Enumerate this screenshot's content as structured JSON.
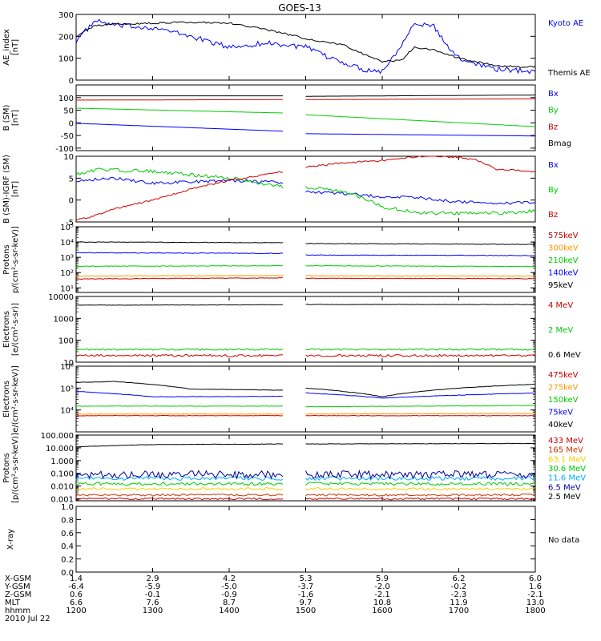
{
  "title": "GOES-13",
  "x_axis": {
    "tick_positions_hhmm": [
      1200,
      1300,
      1400,
      1500,
      1600,
      1700,
      1800
    ],
    "rows": [
      {
        "label": "X-GSM",
        "values": [
          "1.4",
          "2.9",
          "4.2",
          "5.3",
          "5.9",
          "6.2",
          "6.0"
        ]
      },
      {
        "label": "Y-GSM",
        "values": [
          "-6.4",
          "-5.9",
          "-5.0",
          "-3.7",
          "-2.0",
          "-0.2",
          "1.6"
        ]
      },
      {
        "label": "Z-GSM",
        "values": [
          "0.6",
          "-0.1",
          "-0.9",
          "-1.6",
          "-2.1",
          "-2.3",
          "-2.1"
        ]
      },
      {
        "label": "MLT",
        "values": [
          "6.6",
          "7.6",
          "8.7",
          "9.7",
          "10.8",
          "11.9",
          "13.0"
        ]
      },
      {
        "label": "hhmm",
        "values": [
          "1200",
          "1300",
          "1400",
          "1500",
          "1600",
          "1700",
          "1800"
        ]
      }
    ],
    "date_label": "2010 Jul 22"
  },
  "chart_data": [
    {
      "type": "line",
      "ylabel": [
        "AE_index",
        "[nT]"
      ],
      "ylim": [
        0,
        300
      ],
      "scale": "linear",
      "ticks": [
        0,
        100,
        200,
        300
      ],
      "tick_labels": [
        "0",
        "100",
        "200",
        "300"
      ],
      "gap": null,
      "series": [
        {
          "name": "Kyoto AE",
          "color": "#0000ff",
          "noise": 12,
          "x": [
            1200,
            1215,
            1230,
            1300,
            1330,
            1400,
            1430,
            1500,
            1515,
            1530,
            1545,
            1600,
            1615,
            1625,
            1630,
            1640,
            1650,
            1700,
            1730,
            1800
          ],
          "y": [
            180,
            270,
            250,
            240,
            200,
            150,
            170,
            150,
            110,
            80,
            50,
            40,
            160,
            270,
            250,
            250,
            160,
            100,
            50,
            40
          ]
        },
        {
          "name": "Themis AE",
          "color": "#000000",
          "noise": 4,
          "x": [
            1200,
            1215,
            1230,
            1300,
            1330,
            1400,
            1430,
            1500,
            1530,
            1545,
            1600,
            1615,
            1625,
            1640,
            1700,
            1730,
            1800
          ],
          "y": [
            200,
            250,
            255,
            260,
            265,
            260,
            230,
            190,
            160,
            120,
            85,
            90,
            150,
            140,
            100,
            65,
            60
          ]
        }
      ]
    },
    {
      "type": "line",
      "ylabel": [
        "B (SM)",
        "[nT]"
      ],
      "ylim": [
        -110,
        150
      ],
      "scale": "linear",
      "ticks": [
        -100,
        -50,
        0,
        50,
        100
      ],
      "tick_labels": [
        "-100",
        "-50",
        "0",
        "50",
        "100"
      ],
      "gap": [
        1442,
        1500
      ],
      "series": [
        {
          "name": "Bx",
          "color": "#0000ff",
          "noise": 0,
          "x": [
            1200,
            1442,
            1500,
            1800
          ],
          "y": [
            -2,
            -33,
            -43,
            -52
          ]
        },
        {
          "name": "By",
          "color": "#00cc00",
          "noise": 0,
          "x": [
            1200,
            1442,
            1500,
            1800
          ],
          "y": [
            58,
            39,
            32,
            -15
          ]
        },
        {
          "name": "Bz",
          "color": "#cc0000",
          "noise": 0,
          "x": [
            1200,
            1442,
            1500,
            1800
          ],
          "y": [
            90,
            92,
            92,
            95
          ]
        },
        {
          "name": "Bmag",
          "color": "#000000",
          "noise": 0,
          "x": [
            1200,
            1442,
            1500,
            1800
          ],
          "y": [
            107,
            107,
            105,
            110
          ]
        }
      ]
    },
    {
      "type": "line",
      "ylabel": [
        "B (SM)-IGRF (SM)",
        "[nT]"
      ],
      "ylim": [
        -5,
        10
      ],
      "scale": "linear",
      "ticks": [
        -5,
        0,
        5,
        10
      ],
      "tick_labels": [
        "-5",
        "0",
        "5",
        "10"
      ],
      "gap": [
        1442,
        1500
      ],
      "series": [
        {
          "name": "Bx",
          "color": "#0000ff",
          "noise": 0.35,
          "x": [
            1200,
            1230,
            1300,
            1400,
            1442,
            1500,
            1530,
            1600,
            1630,
            1700,
            1730,
            1800
          ],
          "y": [
            4.5,
            5.0,
            3.8,
            4.5,
            4.0,
            2.0,
            1.5,
            0.8,
            0.5,
            -0.4,
            -0.8,
            -0.5
          ]
        },
        {
          "name": "By",
          "color": "#00cc00",
          "noise": 0.4,
          "x": [
            1200,
            1220,
            1300,
            1400,
            1442,
            1500,
            1530,
            1545,
            1600,
            1630,
            1700,
            1730,
            1800
          ],
          "y": [
            6.0,
            7.0,
            6.5,
            5.0,
            3.0,
            3.0,
            2.0,
            0.5,
            -1.5,
            -3.0,
            -3.0,
            -3.0,
            -2.5
          ]
        },
        {
          "name": "Bz",
          "color": "#cc0000",
          "noise": 0.2,
          "x": [
            1200,
            1210,
            1230,
            1300,
            1330,
            1400,
            1442,
            1500,
            1530,
            1600,
            1630,
            1700,
            1715,
            1730,
            1800
          ],
          "y": [
            -4.5,
            -4.0,
            -2.0,
            0.0,
            2.5,
            4.5,
            6.5,
            7.5,
            8.5,
            9.0,
            10.0,
            9.8,
            9.0,
            7.0,
            6.5
          ]
        }
      ]
    },
    {
      "type": "line",
      "ylabel": [
        "Protons",
        "p/(cm²-s-sr-keV)]"
      ],
      "ylim": [
        5,
        100000
      ],
      "scale": "log",
      "ticks": [
        10,
        100,
        1000,
        10000,
        100000
      ],
      "tick_labels": [
        "10¹",
        "10²",
        "10³",
        "10⁴",
        "10⁵"
      ],
      "gap": [
        1442,
        1500
      ],
      "series": [
        {
          "name": "575keV",
          "color": "#cc0000",
          "noise": 0.02,
          "x": [
            1200,
            1442,
            1500,
            1800
          ],
          "y": [
            38,
            45,
            42,
            40
          ]
        },
        {
          "name": "300keV",
          "color": "#ff9900",
          "noise": 0.02,
          "x": [
            1200,
            1442,
            1500,
            1800
          ],
          "y": [
            60,
            65,
            62,
            60
          ]
        },
        {
          "name": "210keV",
          "color": "#00cc00",
          "noise": 0.02,
          "x": [
            1200,
            1442,
            1500,
            1800
          ],
          "y": [
            260,
            280,
            280,
            250
          ]
        },
        {
          "name": "140keV",
          "color": "#0000ff",
          "noise": 0.02,
          "x": [
            1200,
            1442,
            1500,
            1800
          ],
          "y": [
            2000,
            1800,
            1400,
            1300
          ]
        },
        {
          "name": "95keV",
          "color": "#000000",
          "noise": 0.02,
          "x": [
            1200,
            1442,
            1500,
            1800
          ],
          "y": [
            10000,
            9000,
            8000,
            7000
          ]
        }
      ]
    },
    {
      "type": "line",
      "ylabel": [
        "Electrons",
        "[e/(cm²-s-sr)]"
      ],
      "ylim": [
        10,
        10000
      ],
      "scale": "log",
      "ticks": [
        10,
        100,
        1000,
        10000
      ],
      "tick_labels": [
        "10",
        "100",
        "1000",
        "10000"
      ],
      "gap": [
        1442,
        1500
      ],
      "series": [
        {
          "name": "4 MeV",
          "color": "#cc0000",
          "noise": 0.05,
          "x": [
            1200,
            1442,
            1500,
            1800
          ],
          "y": [
            20,
            20,
            20,
            20
          ]
        },
        {
          "name": "2 MeV",
          "color": "#00cc00",
          "noise": 0.04,
          "x": [
            1200,
            1442,
            1500,
            1800
          ],
          "y": [
            38,
            38,
            38,
            38
          ]
        },
        {
          "name": "0.6 MeV",
          "color": "#000000",
          "noise": 0.01,
          "x": [
            1200,
            1442,
            1500,
            1800
          ],
          "y": [
            4000,
            4200,
            4300,
            4300
          ]
        }
      ]
    },
    {
      "type": "line",
      "ylabel": [
        "Electrons",
        "e/(cm²-s-sr-keV)]"
      ],
      "ylim": [
        1000,
        1000000
      ],
      "scale": "log",
      "ticks": [
        10000,
        100000,
        1000000
      ],
      "tick_labels": [
        "10⁴",
        "10⁵",
        "10⁶"
      ],
      "gap": [
        1442,
        1500
      ],
      "series": [
        {
          "name": "475keV",
          "color": "#cc0000",
          "noise": 0.01,
          "x": [
            1200,
            1442,
            1500,
            1800
          ],
          "y": [
            5500,
            5500,
            5500,
            5500
          ]
        },
        {
          "name": "275keV",
          "color": "#ff9900",
          "noise": 0.01,
          "x": [
            1200,
            1442,
            1500,
            1800
          ],
          "y": [
            6500,
            6500,
            6500,
            7000
          ]
        },
        {
          "name": "150keV",
          "color": "#00cc00",
          "noise": 0.01,
          "x": [
            1200,
            1442,
            1500,
            1800
          ],
          "y": [
            15000,
            15000,
            14000,
            16000
          ]
        },
        {
          "name": "75keV",
          "color": "#0000ff",
          "noise": 0.01,
          "x": [
            1200,
            1300,
            1442,
            1500,
            1600,
            1800
          ],
          "y": [
            70000,
            40000,
            42000,
            60000,
            35000,
            60000
          ]
        },
        {
          "name": "40keV",
          "color": "#000000",
          "noise": 0.01,
          "x": [
            1200,
            1230,
            1330,
            1442,
            1500,
            1600,
            1700,
            1800
          ],
          "y": [
            180000,
            200000,
            90000,
            80000,
            100000,
            40000,
            100000,
            150000
          ]
        }
      ]
    },
    {
      "type": "line",
      "ylabel": [
        "Protons",
        "[p/(cm²-s-sr-keV)]"
      ],
      "ylim": [
        0.0007,
        100
      ],
      "scale": "log",
      "ticks": [
        0.001,
        0.01,
        0.1,
        1,
        10,
        100
      ],
      "tick_labels": [
        "0.001",
        "0.010",
        "0.100",
        "1.000",
        "10.000",
        "100.000"
      ],
      "gap": [
        1442,
        1500
      ],
      "series": [
        {
          "name": "433 MeV",
          "color": "#cc0000",
          "noise": 0.08,
          "x": [
            1200,
            1442,
            1500,
            1800
          ],
          "y": [
            0.001,
            0.001,
            0.001,
            0.001
          ]
        },
        {
          "name": "165 MeV",
          "color": "#cc3300",
          "noise": 0.08,
          "x": [
            1200,
            1442,
            1500,
            1800
          ],
          "y": [
            0.002,
            0.002,
            0.002,
            0.002
          ]
        },
        {
          "name": "63.1 MeV",
          "color": "#ffcc00",
          "noise": 0.1,
          "x": [
            1200,
            1442,
            1500,
            1800
          ],
          "y": [
            0.006,
            0.006,
            0.006,
            0.006
          ]
        },
        {
          "name": "30.6 MeV",
          "color": "#00cc00",
          "noise": 0.12,
          "x": [
            1200,
            1442,
            1500,
            1800
          ],
          "y": [
            0.015,
            0.015,
            0.015,
            0.015
          ]
        },
        {
          "name": "11.6 MeV",
          "color": "#00aaff",
          "noise": 0.15,
          "x": [
            1200,
            1442,
            1500,
            1800
          ],
          "y": [
            0.04,
            0.04,
            0.04,
            0.04
          ]
        },
        {
          "name": "6.5 MeV",
          "color": "#000099",
          "noise": 0.3,
          "x": [
            1200,
            1442,
            1500,
            1800
          ],
          "y": [
            0.08,
            0.08,
            0.08,
            0.08
          ]
        },
        {
          "name": "2.5 MeV",
          "color": "#000000",
          "noise": 0.015,
          "x": [
            1200,
            1300,
            1442,
            1500,
            1800
          ],
          "y": [
            12,
            18,
            20,
            20,
            22
          ]
        }
      ]
    },
    {
      "type": "line",
      "ylabel": [
        "X-ray"
      ],
      "ylim": [
        0,
        1
      ],
      "scale": "linear",
      "ticks": [
        0,
        0.2,
        0.4,
        0.6,
        0.8,
        1.0
      ],
      "tick_labels": [
        "0.0",
        "0.2",
        "0.4",
        "0.6",
        "0.8",
        "1.0"
      ],
      "gap": null,
      "series": [],
      "legend_text": "No data"
    }
  ]
}
